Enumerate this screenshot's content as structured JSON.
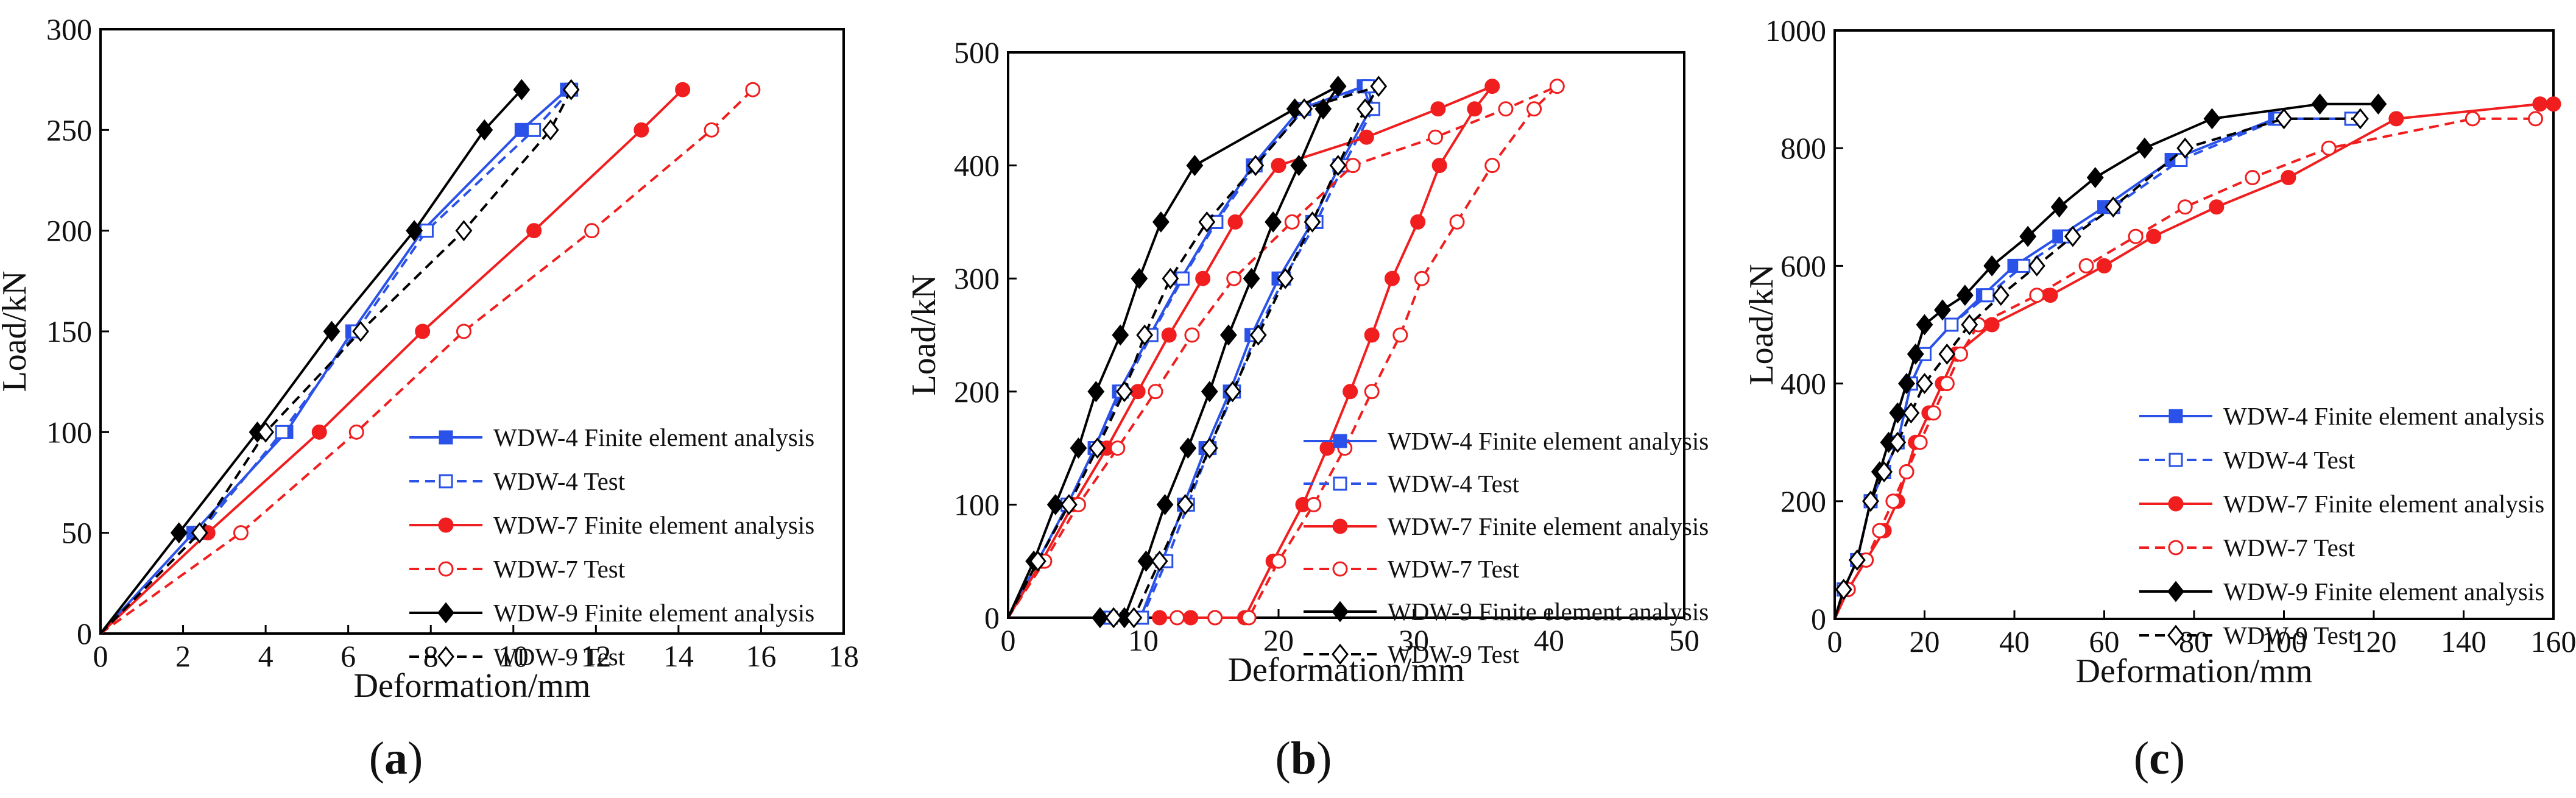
{
  "figure": {
    "panel_labels": [
      {
        "open": "(",
        "letter": "a",
        "close": ")"
      },
      {
        "open": "(",
        "letter": "b",
        "close": ")"
      },
      {
        "open": "(",
        "letter": "c",
        "close": ")"
      }
    ]
  },
  "colors": {
    "WDW-4": "#2a52e8",
    "WDW-7": "#f01e1e",
    "WDW-9": "#000000",
    "axis": "#000000"
  },
  "chart_data": [
    {
      "type": "line",
      "panel": "a",
      "xlabel": "Deformation/mm",
      "ylabel": "Load/kN",
      "xlim": [
        0,
        18
      ],
      "ylim": [
        0,
        300
      ],
      "xticks": [
        0,
        2,
        4,
        6,
        8,
        10,
        12,
        14,
        16,
        18
      ],
      "yticks": [
        0,
        50,
        100,
        150,
        200,
        250,
        300
      ],
      "legend_position": "bottom-right",
      "series": [
        {
          "name": "WDW-4 Finite element analysis",
          "specimen": "WDW-4",
          "line": "solid",
          "marker": "square-filled",
          "x": [
            0,
            2.25,
            4.5,
            6.1,
            7.8,
            10.2,
            11.3
          ],
          "y": [
            0,
            50,
            100,
            150,
            200,
            250,
            270
          ]
        },
        {
          "name": "WDW-4 Test",
          "specimen": "WDW-4",
          "line": "dashed",
          "marker": "square-open",
          "x": [
            0,
            2.4,
            4.4,
            6.2,
            7.9,
            10.5,
            11.4
          ],
          "y": [
            0,
            50,
            100,
            150,
            200,
            250,
            270
          ]
        },
        {
          "name": "WDW-7 Finite element analysis",
          "specimen": "WDW-7",
          "line": "solid",
          "marker": "circle-filled",
          "x": [
            0,
            2.6,
            5.3,
            7.8,
            10.5,
            13.1,
            14.1
          ],
          "y": [
            0,
            50,
            100,
            150,
            200,
            250,
            270
          ]
        },
        {
          "name": "WDW-7 Test",
          "specimen": "WDW-7",
          "line": "dashed",
          "marker": "circle-open",
          "x": [
            0,
            3.4,
            6.2,
            8.8,
            11.9,
            14.8,
            15.8
          ],
          "y": [
            0,
            50,
            100,
            150,
            200,
            250,
            270
          ]
        },
        {
          "name": "WDW-9 Finite element analysis",
          "specimen": "WDW-9",
          "line": "solid",
          "marker": "diamond-filled",
          "x": [
            0,
            1.9,
            3.8,
            5.6,
            7.6,
            9.3,
            10.2
          ],
          "y": [
            0,
            50,
            100,
            150,
            200,
            250,
            270
          ]
        },
        {
          "name": "WDW-9 Test",
          "specimen": "WDW-9",
          "line": "dashed",
          "marker": "diamond-open",
          "x": [
            0,
            2.4,
            4.0,
            6.3,
            8.8,
            10.9,
            11.4
          ],
          "y": [
            0,
            50,
            100,
            150,
            200,
            250,
            270
          ]
        }
      ]
    },
    {
      "type": "line",
      "panel": "b",
      "xlabel": "Deformation/mm",
      "ylabel": "Load/kN",
      "xlim": [
        0,
        50
      ],
      "ylim": [
        0,
        500
      ],
      "xticks": [
        0,
        10,
        20,
        30,
        40,
        50
      ],
      "yticks": [
        0,
        100,
        200,
        300,
        400,
        500
      ],
      "legend_position": "bottom-right",
      "series": [
        {
          "name": "WDW-4 Finite element analysis",
          "specimen": "WDW-4",
          "line": "solid",
          "marker": "square-filled",
          "x": [
            0,
            2.2,
            4.4,
            6.4,
            8.2,
            10.5,
            12.8,
            15.3,
            18.1,
            21.6,
            26.3,
            26.8,
            24.5,
            22.5,
            20.0,
            18.0,
            16.4,
            14.6,
            13.0,
            11.4,
            9.8,
            7.5
          ],
          "y": [
            0,
            50,
            100,
            150,
            200,
            250,
            300,
            350,
            400,
            450,
            470,
            450,
            400,
            350,
            300,
            250,
            200,
            150,
            100,
            50,
            0,
            0
          ]
        },
        {
          "name": "WDW-4 Test",
          "specimen": "WDW-4",
          "line": "dashed",
          "marker": "square-open",
          "x": [
            0,
            2.2,
            4.4,
            6.5,
            8.4,
            10.6,
            12.9,
            15.4,
            18.3,
            21.9,
            26.6,
            27.0,
            24.8,
            22.8,
            20.4,
            18.3,
            16.7,
            14.9,
            13.3,
            11.7,
            9.9,
            7.6
          ],
          "y": [
            0,
            50,
            100,
            150,
            200,
            250,
            300,
            350,
            400,
            450,
            470,
            450,
            400,
            350,
            300,
            250,
            200,
            150,
            100,
            50,
            0,
            0
          ]
        },
        {
          "name": "WDW-7 Finite element analysis",
          "specimen": "WDW-7",
          "line": "solid",
          "marker": "circle-filled",
          "x": [
            0,
            2.5,
            4.8,
            7.3,
            9.6,
            11.9,
            14.4,
            16.8,
            20.0,
            26.5,
            31.8,
            35.8,
            34.5,
            31.9,
            30.3,
            28.4,
            26.9,
            25.3,
            23.6,
            21.8,
            19.6,
            17.5,
            15.3,
            13.5,
            11.2
          ],
          "y": [
            0,
            50,
            100,
            150,
            200,
            250,
            300,
            350,
            400,
            425,
            450,
            470,
            450,
            400,
            350,
            300,
            250,
            200,
            150,
            100,
            50,
            0,
            0,
            0,
            0
          ]
        },
        {
          "name": "WDW-7 Test",
          "specimen": "WDW-7",
          "line": "dashed",
          "marker": "circle-open",
          "x": [
            0,
            2.7,
            5.2,
            8.1,
            10.9,
            13.6,
            16.7,
            21.0,
            25.5,
            31.6,
            36.8,
            40.6,
            38.9,
            35.8,
            33.2,
            30.6,
            29.0,
            26.9,
            24.9,
            22.6,
            20.0,
            17.8,
            15.3,
            12.5
          ],
          "y": [
            0,
            50,
            100,
            150,
            200,
            250,
            300,
            350,
            400,
            425,
            450,
            470,
            450,
            400,
            350,
            300,
            250,
            200,
            150,
            100,
            50,
            0,
            0,
            0
          ]
        },
        {
          "name": "WDW-9 Finite element analysis",
          "specimen": "WDW-9",
          "line": "solid",
          "marker": "diamond-filled",
          "x": [
            0,
            1.9,
            3.5,
            5.2,
            6.5,
            8.3,
            9.7,
            11.3,
            13.8,
            21.2,
            24.4,
            23.3,
            21.5,
            19.6,
            18.0,
            16.3,
            14.9,
            13.3,
            11.6,
            10.2,
            8.6,
            6.8
          ],
          "y": [
            0,
            50,
            100,
            150,
            200,
            250,
            300,
            350,
            400,
            450,
            470,
            450,
            400,
            350,
            300,
            250,
            200,
            150,
            100,
            50,
            0,
            0
          ]
        },
        {
          "name": "WDW-9 Test",
          "specimen": "WDW-9",
          "line": "dashed",
          "marker": "diamond-open",
          "x": [
            0,
            2.2,
            4.5,
            6.6,
            8.6,
            10.1,
            12.0,
            14.7,
            18.3,
            21.9,
            27.4,
            26.4,
            24.4,
            22.5,
            20.5,
            18.5,
            16.6,
            14.9,
            13.1,
            11.2,
            9.3,
            7.8
          ],
          "y": [
            0,
            50,
            100,
            150,
            200,
            250,
            300,
            350,
            400,
            450,
            470,
            450,
            400,
            350,
            300,
            250,
            200,
            150,
            100,
            50,
            0,
            0
          ]
        }
      ]
    },
    {
      "type": "line",
      "panel": "c",
      "xlabel": "Deformation/mm",
      "ylabel": "Load/kN",
      "xlim": [
        0,
        160
      ],
      "ylim": [
        0,
        1000
      ],
      "xticks": [
        0,
        20,
        40,
        60,
        80,
        100,
        120,
        140,
        160
      ],
      "yticks": [
        0,
        200,
        400,
        600,
        800,
        1000
      ],
      "legend_position": "bottom-right",
      "series": [
        {
          "name": "WDW-4 Finite element analysis",
          "specimen": "WDW-4",
          "line": "solid",
          "marker": "square-filled",
          "x": [
            0,
            2,
            5,
            8,
            11,
            14,
            17,
            20,
            26,
            33,
            40,
            50,
            60,
            75,
            98,
            115
          ],
          "y": [
            0,
            50,
            100,
            200,
            250,
            300,
            400,
            450,
            500,
            550,
            600,
            650,
            700,
            780,
            850,
            850
          ]
        },
        {
          "name": "WDW-4 Test",
          "specimen": "WDW-4",
          "line": "dashed",
          "marker": "square-open",
          "x": [
            0,
            2,
            5,
            8,
            11,
            14,
            17,
            20,
            26,
            34,
            42,
            52,
            62,
            77,
            99,
            115
          ],
          "y": [
            0,
            50,
            100,
            200,
            250,
            300,
            400,
            450,
            500,
            550,
            600,
            650,
            700,
            780,
            850,
            850
          ]
        },
        {
          "name": "WDW-7 Finite element analysis",
          "specimen": "WDW-7",
          "line": "solid",
          "marker": "circle-filled",
          "x": [
            0,
            3,
            7,
            11,
            14,
            16,
            18,
            21,
            24,
            27,
            35,
            48,
            60,
            71,
            85,
            101,
            125,
            157,
            160
          ],
          "y": [
            0,
            50,
            100,
            150,
            200,
            250,
            300,
            350,
            400,
            450,
            500,
            550,
            600,
            650,
            700,
            750,
            850,
            875,
            875
          ]
        },
        {
          "name": "WDW-7 Test",
          "specimen": "WDW-7",
          "line": "dashed",
          "marker": "circle-open",
          "x": [
            0,
            3,
            7,
            10,
            13,
            16,
            19,
            22,
            25,
            28,
            32,
            45,
            56,
            67,
            78,
            93,
            110,
            142,
            156
          ],
          "y": [
            0,
            50,
            100,
            150,
            200,
            250,
            300,
            350,
            400,
            450,
            500,
            550,
            600,
            650,
            700,
            750,
            800,
            850,
            850
          ]
        },
        {
          "name": "WDW-9 Finite element analysis",
          "specimen": "WDW-9",
          "line": "solid",
          "marker": "diamond-filled",
          "x": [
            0,
            2,
            5,
            8,
            10,
            12,
            14,
            16,
            18,
            20,
            24,
            29,
            35,
            43,
            50,
            58,
            69,
            84,
            108,
            121
          ],
          "y": [
            0,
            50,
            100,
            200,
            250,
            300,
            350,
            400,
            450,
            500,
            525,
            550,
            600,
            650,
            700,
            750,
            800,
            850,
            875,
            875
          ]
        },
        {
          "name": "WDW-9 Test",
          "specimen": "WDW-9",
          "line": "dashed",
          "marker": "diamond-open",
          "x": [
            0,
            2,
            5,
            8,
            11,
            14,
            17,
            20,
            25,
            30,
            37,
            45,
            53,
            62,
            78,
            100,
            117
          ],
          "y": [
            0,
            50,
            100,
            200,
            250,
            300,
            350,
            400,
            450,
            500,
            550,
            600,
            650,
            700,
            800,
            850,
            850
          ]
        }
      ]
    }
  ]
}
